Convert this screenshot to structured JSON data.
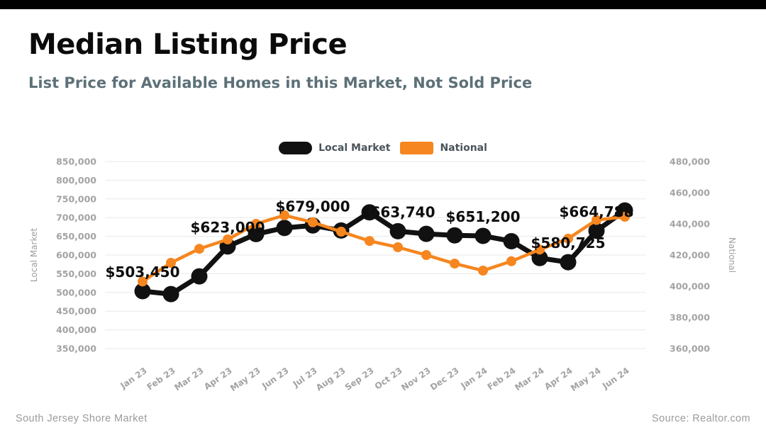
{
  "header": {
    "title": "Median Listing Price",
    "subtitle": "List Price for Available Homes in this Market, Not Sold Price"
  },
  "legend": [
    {
      "label": "Local Market",
      "color": "#111111",
      "shape": "pill"
    },
    {
      "label": "National",
      "color": "#F6861F",
      "shape": "rect"
    }
  ],
  "footer": {
    "left": "South Jersey Shore Market",
    "right": "Source: Realtor.com"
  },
  "chart_data": {
    "type": "line",
    "categories": [
      "Jan 23",
      "Feb 23",
      "Mar 23",
      "Apr 23",
      "May 23",
      "Jun 23",
      "Jul 23",
      "Aug 23",
      "Sep 23",
      "Oct 23",
      "Nov 23",
      "Dec 23",
      "Jan 24",
      "Feb 24",
      "Mar 24",
      "Apr 24",
      "May 24",
      "Jun 24"
    ],
    "series": [
      {
        "name": "Local Market",
        "axis": "left",
        "color": "#111111",
        "values": [
          503450,
          495500,
          543000,
          623000,
          656000,
          672500,
          679000,
          665500,
          714000,
          663740,
          656500,
          652500,
          651200,
          637000,
          592000,
          580725,
          664788,
          719000
        ]
      },
      {
        "name": "National",
        "axis": "right",
        "color": "#F6861F",
        "values": [
          403000,
          415000,
          424000,
          430000,
          440000,
          445500,
          441000,
          435000,
          429000,
          425000,
          420000,
          414500,
          410000,
          416000,
          423500,
          430500,
          442500,
          444500
        ]
      }
    ],
    "point_labels": [
      {
        "index": 0,
        "text": "$503,450"
      },
      {
        "index": 3,
        "text": "$623,000"
      },
      {
        "index": 6,
        "text": "$679,000"
      },
      {
        "index": 9,
        "text": "$663,740"
      },
      {
        "index": 12,
        "text": "$651,200"
      },
      {
        "index": 15,
        "text": "$580,725"
      },
      {
        "index": 16,
        "text": "$664,788"
      }
    ],
    "left_axis": {
      "title": "Local Market",
      "min": 350000,
      "max": 850000,
      "step": 50000,
      "ticks": [
        "850,000",
        "800,000",
        "750,000",
        "700,000",
        "650,000",
        "600,000",
        "550,000",
        "500,000",
        "450,000",
        "400,000",
        "350,000"
      ]
    },
    "right_axis": {
      "title": "National",
      "min": 360000,
      "max": 480000,
      "step": 20000,
      "ticks": [
        "480,000",
        "460,000",
        "440,000",
        "420,000",
        "400,000",
        "380,000",
        "360,000"
      ]
    },
    "grid": "horizontal",
    "legend_position": "top-center",
    "colors": {
      "grid": "#e8e8e8",
      "tick_text": "#a3a3a3",
      "axis_title": "#9e9e9e",
      "data_label": "#0d0d0d"
    }
  }
}
